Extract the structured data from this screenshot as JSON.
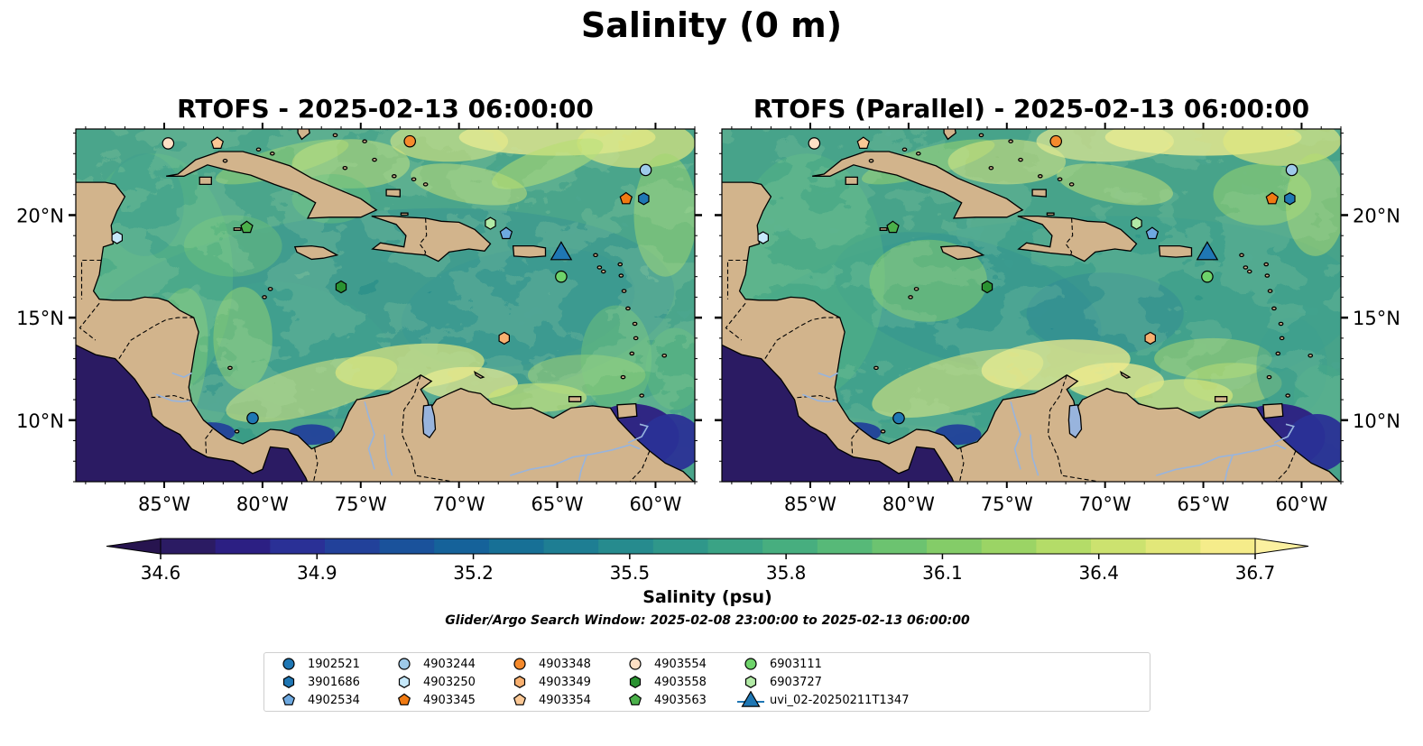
{
  "figure": {
    "title": "Salinity (0 m)",
    "subtitle": "Glider/Argo Search Window: 2025-02-08 23:00:00 to 2025-02-13 06:00:00"
  },
  "panels": [
    {
      "title": "RTOFS - 2025-02-13 06:00:00",
      "variant": "operational"
    },
    {
      "title": "RTOFS (Parallel) - 2025-02-13 06:00:00",
      "variant": "parallel"
    }
  ],
  "chart_data": {
    "type": "heatmap",
    "variable": "Salinity",
    "depth": "0 m",
    "lon_range": [
      -89.5,
      -58
    ],
    "lat_range": [
      7,
      24.2
    ],
    "lon_ticks": [
      -85,
      -80,
      -75,
      -70,
      -65,
      -60
    ],
    "lon_tick_labels": [
      "85°W",
      "80°W",
      "75°W",
      "70°W",
      "65°W",
      "60°W"
    ],
    "lat_ticks": [
      10,
      15,
      20
    ],
    "lat_tick_labels": [
      "10°N",
      "15°N",
      "20°N"
    ],
    "colorbar": {
      "label": "Salinity (psu)",
      "min": 34.6,
      "max": 36.7,
      "extend": "both",
      "ticks": [
        34.6,
        34.9,
        35.2,
        35.5,
        35.8,
        36.1,
        36.4,
        36.7
      ],
      "tick_labels": [
        "34.6",
        "34.9",
        "35.2",
        "35.5",
        "35.8",
        "36.1",
        "36.4",
        "36.7"
      ],
      "colors": [
        "#2b1b63",
        "#2c1f83",
        "#2a3096",
        "#22419a",
        "#1a529b",
        "#15629a",
        "#177096",
        "#1e7e93",
        "#268b8e",
        "#2f978a",
        "#3aa385",
        "#47ae7f",
        "#57b978",
        "#6cc370",
        "#84cc68",
        "#9bd465",
        "#b4dc68",
        "#cce26f",
        "#e2e779",
        "#f5ec8a"
      ]
    },
    "land_color": "#d2b48c",
    "lake_color": "#98b4dd",
    "platforms": [
      {
        "id": "1902521",
        "lon": -80.5,
        "lat": 10.1,
        "marker": "circle",
        "color": "#1f77b4"
      },
      {
        "id": "3901686",
        "lon": -60.6,
        "lat": 20.8,
        "marker": "hexagon",
        "color": "#1f77b4"
      },
      {
        "id": "4902534",
        "lon": -67.6,
        "lat": 19.1,
        "marker": "pentagon",
        "color": "#6ea9e0"
      },
      {
        "id": "4903244",
        "lon": -60.5,
        "lat": 22.2,
        "marker": "circle",
        "color": "#9ecae9"
      },
      {
        "id": "4903250",
        "lon": -87.4,
        "lat": 18.9,
        "marker": "hexagon",
        "color": "#c6e9fb"
      },
      {
        "id": "4903345",
        "lon": -61.5,
        "lat": 20.8,
        "marker": "pentagon",
        "color": "#f07a12"
      },
      {
        "id": "4903348",
        "lon": -72.5,
        "lat": 23.6,
        "marker": "circle",
        "color": "#f58a2c"
      },
      {
        "id": "4903349",
        "lon": -67.7,
        "lat": 14.0,
        "marker": "hexagon",
        "color": "#f8b070"
      },
      {
        "id": "4903354",
        "lon": -82.3,
        "lat": 23.5,
        "marker": "pentagon",
        "color": "#fbc895"
      },
      {
        "id": "4903554",
        "lon": -84.8,
        "lat": 23.5,
        "marker": "circle",
        "color": "#fde0c5"
      },
      {
        "id": "4903558",
        "lon": -76.0,
        "lat": 16.5,
        "marker": "hexagon",
        "color": "#2a9231"
      },
      {
        "id": "4903563",
        "lon": -80.8,
        "lat": 19.4,
        "marker": "pentagon",
        "color": "#4bb04a"
      },
      {
        "id": "6903111",
        "lon": -64.8,
        "lat": 17.0,
        "marker": "circle",
        "color": "#6ed36a"
      },
      {
        "id": "6903727",
        "lon": -68.4,
        "lat": 19.6,
        "marker": "hexagon",
        "color": "#b2eaa6"
      },
      {
        "id": "uvi_02-20250211T1347",
        "lon": -64.8,
        "lat": 18.2,
        "marker": "triangle",
        "color": "#1f77b4"
      }
    ]
  }
}
